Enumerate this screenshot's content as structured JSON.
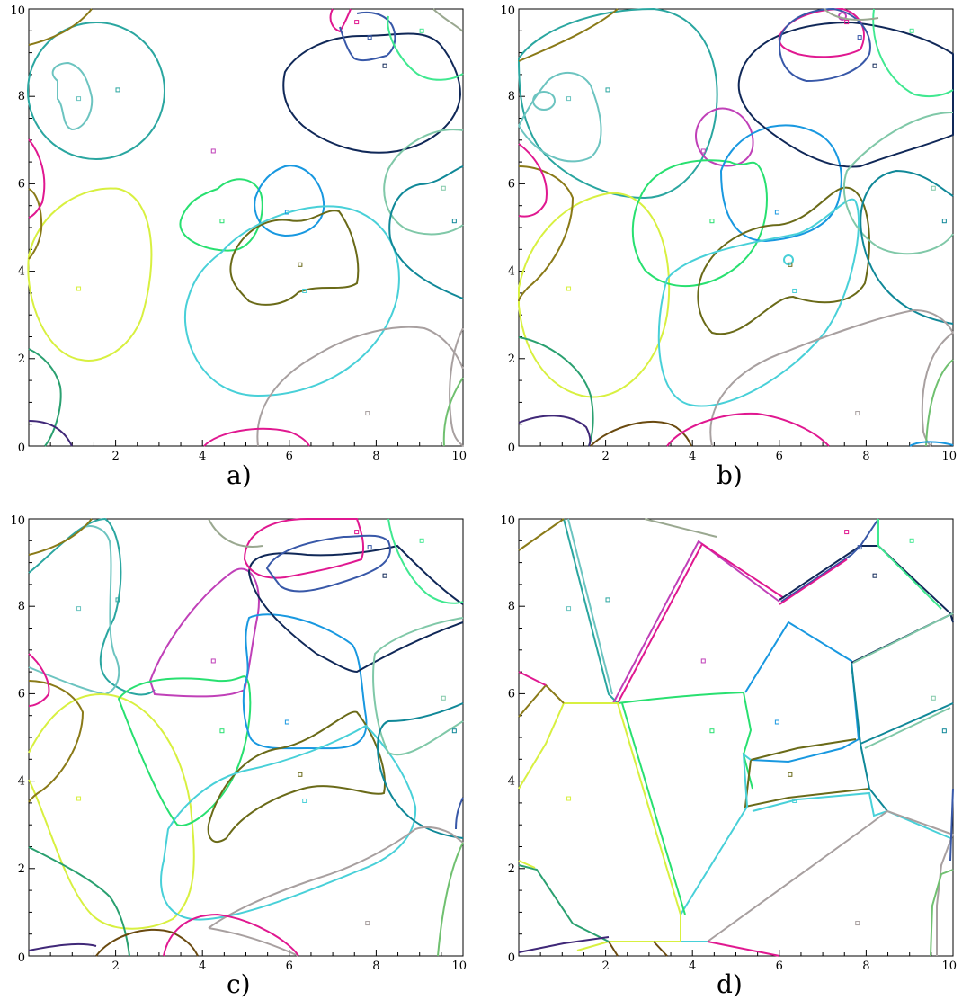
{
  "panels": [
    {
      "id": "a",
      "caption": "a)"
    },
    {
      "id": "b",
      "caption": "b)"
    },
    {
      "id": "c",
      "caption": "c)"
    },
    {
      "id": "d",
      "caption": "d)"
    }
  ],
  "axes": {
    "xlim": [
      0,
      10
    ],
    "ylim": [
      0,
      10
    ],
    "x_tick_labels": [
      "0",
      "2",
      "4",
      "6",
      "8",
      "10"
    ],
    "y_tick_labels": [
      "0",
      "2",
      "4",
      "6",
      "8",
      "10"
    ]
  },
  "seeds": [
    {
      "x": 1.15,
      "y": 7.95,
      "color": "#6cc4c0"
    },
    {
      "x": 2.05,
      "y": 8.15,
      "color": "#2aa6a0"
    },
    {
      "x": 4.25,
      "y": 6.75,
      "color": "#c040b8"
    },
    {
      "x": 4.45,
      "y": 5.15,
      "color": "#28e070"
    },
    {
      "x": 5.95,
      "y": 5.35,
      "color": "#1898e0"
    },
    {
      "x": 6.25,
      "y": 4.15,
      "color": "#6a6a18"
    },
    {
      "x": 6.35,
      "y": 3.55,
      "color": "#48d0d8"
    },
    {
      "x": 1.15,
      "y": 3.6,
      "color": "#d8f040"
    },
    {
      "x": 7.55,
      "y": 9.7,
      "color": "#e01890"
    },
    {
      "x": 7.85,
      "y": 9.35,
      "color": "#3858a8"
    },
    {
      "x": 8.2,
      "y": 8.7,
      "color": "#102858"
    },
    {
      "x": 9.05,
      "y": 9.5,
      "color": "#40e890"
    },
    {
      "x": 9.55,
      "y": 5.9,
      "color": "#80c8a8"
    },
    {
      "x": 9.8,
      "y": 5.15,
      "color": "#108898"
    },
    {
      "x": 7.8,
      "y": 0.75,
      "color": "#a8a0a0"
    }
  ]
}
